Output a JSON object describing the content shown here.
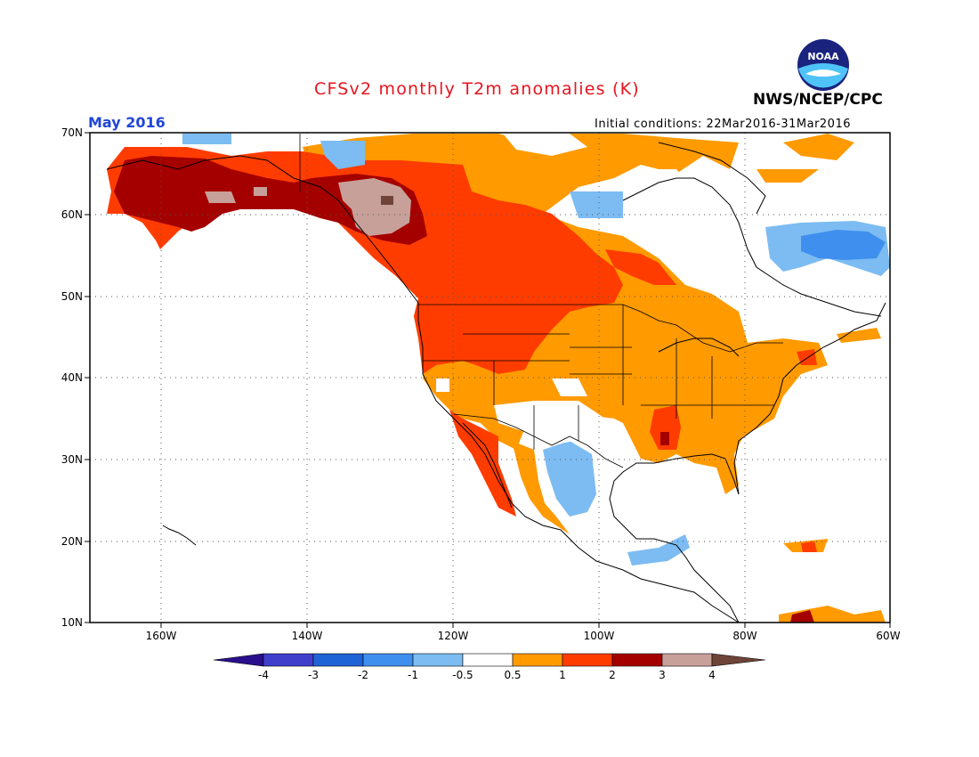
{
  "title": "CFSv2 monthly T2m anomalies (K)",
  "org": "NWS/NCEP/CPC",
  "logo_text": "NOAA",
  "valid_month": "May 2016",
  "init_conditions": "Initial conditions: 22Mar2016-31Mar2016",
  "lat_labels": [
    "70N",
    "60N",
    "50N",
    "40N",
    "30N",
    "20N",
    "10N"
  ],
  "lon_labels": [
    "160W",
    "140W",
    "120W",
    "100W",
    "80W",
    "60W"
  ],
  "colorbar": {
    "tick_labels": [
      "-4",
      "-3",
      "-2",
      "-1",
      "-0.5",
      "0.5",
      "1",
      "2",
      "3",
      "4"
    ],
    "colors": [
      "#2a0f8c",
      "#3f3fcc",
      "#1f64d6",
      "#3f8fee",
      "#7cbcf2",
      "#ffffff",
      "#ff9a00",
      "#ff3c00",
      "#a50000",
      "#c8a09a",
      "#6e4438"
    ]
  },
  "map_colors": {
    "land_background": "#ffffff",
    "gt_3": "#c8a09a",
    "c2_3": "#a50000",
    "c1_2": "#ff3c00",
    "c05_1": "#ff9a00",
    "neg05_1": "#7cbcf2",
    "neg1_2": "#3f8fee",
    "gt_4": "#6e4438"
  }
}
